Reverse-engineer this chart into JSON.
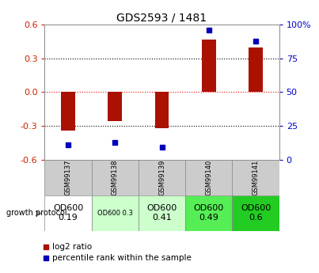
{
  "title": "GDS2593 / 1481",
  "samples": [
    "GSM99137",
    "GSM99138",
    "GSM99139",
    "GSM99140",
    "GSM99141"
  ],
  "log2_ratio": [
    -0.34,
    -0.26,
    -0.32,
    0.47,
    0.4
  ],
  "percentile_rank": [
    11,
    13,
    9,
    96,
    88
  ],
  "bar_color": "#aa1100",
  "dot_color": "#0000bb",
  "ylim_left": [
    -0.6,
    0.6
  ],
  "ylim_right": [
    0,
    100
  ],
  "yticks_left": [
    -0.6,
    -0.3,
    0.0,
    0.3,
    0.6
  ],
  "yticks_right": [
    0,
    25,
    50,
    75,
    100
  ],
  "growth_protocol_labels": [
    "OD600\n0.19",
    "OD600 0.3",
    "OD600\n0.41",
    "OD600\n0.49",
    "OD600\n0.6"
  ],
  "growth_protocol_colors": [
    "#ffffff",
    "#ccffcc",
    "#ccffcc",
    "#55ee55",
    "#22cc22"
  ],
  "growth_protocol_fontsizes": [
    8,
    6,
    8,
    8,
    8
  ],
  "sample_bg_color": "#cccccc",
  "background_color": "#ffffff",
  "bar_width": 0.3,
  "left_ytick_color": "#cc2200",
  "right_ytick_color": "#0000cc"
}
